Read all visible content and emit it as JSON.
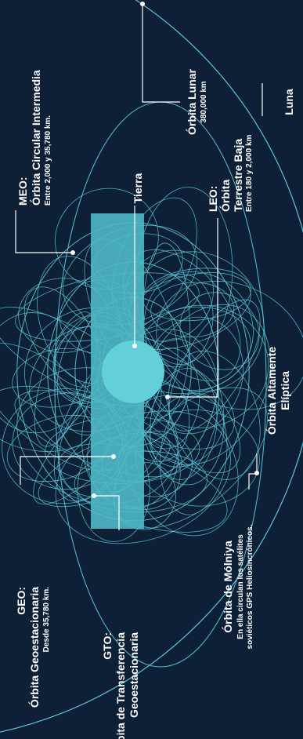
{
  "colors": {
    "background": "#0d2036",
    "orbit": "#5cc6d6",
    "earth": "#62cfd9",
    "band": "#4fb9c6",
    "text": "#ffffff",
    "leader": "#ffffff"
  },
  "labels": {
    "luna": "Luna",
    "orbita_lunar": "Órbita Lunar",
    "orbita_lunar_km": "380,000 km",
    "meo_code": "MEO:",
    "meo_title": "Órbita Circular Intermedia",
    "meo_range": "Entre 2,000 y 35,780 km.",
    "tierra": "Tierra",
    "leo_code": "LEO:",
    "leo_title_1": "Órbita",
    "leo_title_2": "Terrestre Baja",
    "leo_range": "Entre 180 y 2,000 km",
    "heo_title_1": "Órbita Altamente",
    "heo_title_2": "Elíptica",
    "molniya_title": "Órbita de Mólniya",
    "molniya_desc_1": "En ella circulan los satélites",
    "molniya_desc_2": "soviéticos GPS Heliosincrónicos.",
    "gto_code": "GTO:",
    "gto_title_1": "Órbita de Transferencia",
    "gto_title_2": "Geoestacionaria",
    "geo_code": "GEO:",
    "geo_title": "Órbita Geoestacionaria",
    "geo_range": "Desde 35,780 km."
  }
}
